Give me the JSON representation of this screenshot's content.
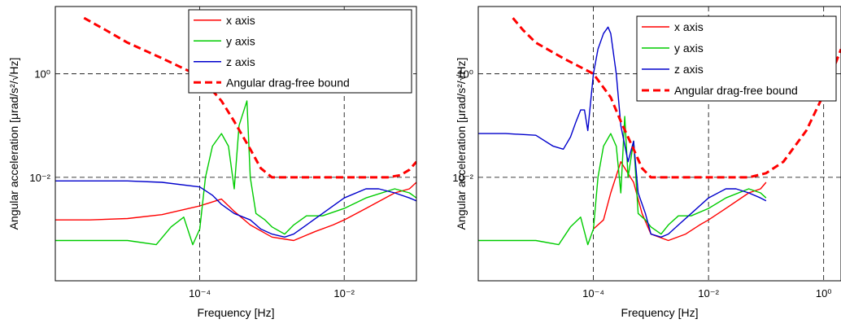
{
  "chart_data": [
    {
      "type": "line",
      "xlabel": "Frequency [Hz]",
      "ylabel": "Angular acceleration [μrad/s²/√Hz]",
      "x_scale": "log",
      "y_scale": "log",
      "xlim": [
        1e-06,
        0.1
      ],
      "ylim": [
        0.0001,
        20
      ],
      "x_ticks": [
        {
          "value": 0.0001,
          "label": "10⁻⁴"
        },
        {
          "value": 0.01,
          "label": "10⁻²"
        }
      ],
      "y_ticks": [
        {
          "value": 0.01,
          "label": "10⁻²"
        },
        {
          "value": 1,
          "label": "10⁰"
        }
      ],
      "grid": "dashed at major decades",
      "legend_position": "top-right",
      "series": [
        {
          "name": "x axis",
          "color": "#ff0000",
          "style": "solid",
          "x": [
            1e-06,
            3e-06,
            1e-05,
            3e-05,
            0.0001,
            0.0002,
            0.0003,
            0.0005,
            0.001,
            0.002,
            0.004,
            0.007,
            0.01,
            0.02,
            0.05,
            0.08,
            0.1
          ],
          "y": [
            0.0015,
            0.0015,
            0.0016,
            0.0019,
            0.0028,
            0.0038,
            0.0022,
            0.0012,
            0.0007,
            0.0006,
            0.0009,
            0.0012,
            0.0015,
            0.0025,
            0.005,
            0.006,
            0.008
          ]
        },
        {
          "name": "y axis",
          "color": "#00cc00",
          "style": "solid",
          "x": [
            1e-06,
            3e-06,
            1e-05,
            2.5e-05,
            4e-05,
            6e-05,
            8e-05,
            0.0001,
            0.00012,
            0.00015,
            0.0002,
            0.00025,
            0.0003,
            0.00035,
            0.00045,
            0.0005,
            0.0006,
            0.0008,
            0.001,
            0.0015,
            0.002,
            0.003,
            0.005,
            0.01,
            0.02,
            0.05,
            0.08,
            0.1
          ],
          "y": [
            0.0006,
            0.0006,
            0.0006,
            0.0005,
            0.0011,
            0.0017,
            0.0005,
            0.001,
            0.01,
            0.04,
            0.07,
            0.04,
            0.006,
            0.1,
            0.3,
            0.01,
            0.002,
            0.0015,
            0.0011,
            0.0008,
            0.0012,
            0.0018,
            0.0018,
            0.0025,
            0.004,
            0.006,
            0.005,
            0.004
          ]
        },
        {
          "name": "z axis",
          "color": "#0000cc",
          "style": "solid",
          "x": [
            1e-06,
            3e-06,
            1e-05,
            3e-05,
            0.0001,
            0.00015,
            0.0002,
            0.0003,
            0.0005,
            0.0007,
            0.001,
            0.0015,
            0.002,
            0.003,
            0.005,
            0.01,
            0.02,
            0.03,
            0.05,
            0.08,
            0.1
          ],
          "y": [
            0.0085,
            0.0085,
            0.0085,
            0.008,
            0.0065,
            0.0045,
            0.003,
            0.002,
            0.0015,
            0.001,
            0.0008,
            0.0007,
            0.0008,
            0.0012,
            0.002,
            0.004,
            0.006,
            0.006,
            0.005,
            0.004,
            0.0035
          ]
        },
        {
          "name": "Angular drag-free bound",
          "color": "#ff0000",
          "style": "dashed",
          "x": [
            2.5e-06,
            5e-06,
            1e-05,
            3e-05,
            0.0001,
            0.0002,
            0.0003,
            0.0005,
            0.0007,
            0.001,
            0.002,
            0.005,
            0.01,
            0.02,
            0.04,
            0.06,
            0.08,
            0.1
          ],
          "y": [
            12,
            7,
            4,
            2,
            0.9,
            0.3,
            0.12,
            0.035,
            0.015,
            0.01,
            0.01,
            0.01,
            0.01,
            0.01,
            0.01,
            0.011,
            0.014,
            0.02
          ]
        }
      ]
    },
    {
      "type": "line",
      "xlabel": "Frequency [Hz]",
      "ylabel": "Angular acceleration [μrad/s²/√Hz]",
      "x_scale": "log",
      "y_scale": "log",
      "xlim": [
        1e-06,
        2
      ],
      "ylim": [
        0.0001,
        20
      ],
      "x_ticks": [
        {
          "value": 0.0001,
          "label": "10⁻⁴"
        },
        {
          "value": 0.01,
          "label": "10⁻²"
        },
        {
          "value": 1,
          "label": "10⁰"
        }
      ],
      "y_ticks": [
        {
          "value": 0.01,
          "label": "10⁻²"
        },
        {
          "value": 1,
          "label": "10⁰"
        }
      ],
      "grid": "dashed at major decades",
      "legend_position": "top-right",
      "series": [
        {
          "name": "x axis",
          "color": "#ff0000",
          "style": "solid",
          "x": [
            0.0001,
            0.00015,
            0.0002,
            0.0003,
            0.0005,
            0.0007,
            0.001,
            0.002,
            0.004,
            0.007,
            0.01,
            0.02,
            0.05,
            0.08,
            0.1
          ],
          "y": [
            0.001,
            0.0015,
            0.005,
            0.02,
            0.008,
            0.002,
            0.0008,
            0.0006,
            0.0008,
            0.0012,
            0.0015,
            0.0025,
            0.005,
            0.006,
            0.008
          ]
        },
        {
          "name": "y axis",
          "color": "#00cc00",
          "style": "solid",
          "x": [
            1e-06,
            3e-06,
            1e-05,
            2.5e-05,
            4e-05,
            6e-05,
            8e-05,
            0.0001,
            0.00012,
            0.00015,
            0.0002,
            0.00025,
            0.0003,
            0.00035,
            0.0004,
            0.0005,
            0.0006,
            0.0008,
            0.001,
            0.0015,
            0.002,
            0.003,
            0.005,
            0.01,
            0.02,
            0.05,
            0.08,
            0.1
          ],
          "y": [
            0.0006,
            0.0006,
            0.0006,
            0.0005,
            0.0011,
            0.0017,
            0.0005,
            0.001,
            0.01,
            0.04,
            0.07,
            0.04,
            0.005,
            0.15,
            0.01,
            0.05,
            0.002,
            0.0015,
            0.0011,
            0.0008,
            0.0012,
            0.0018,
            0.0018,
            0.0025,
            0.004,
            0.006,
            0.005,
            0.004
          ]
        },
        {
          "name": "z axis",
          "color": "#0000cc",
          "style": "solid",
          "x": [
            1e-06,
            3e-06,
            1e-05,
            2e-05,
            3e-05,
            4e-05,
            5e-05,
            6e-05,
            7e-05,
            8e-05,
            9e-05,
            0.0001,
            0.00012,
            0.00015,
            0.00018,
            0.0002,
            0.00025,
            0.0003,
            0.0004,
            0.0005,
            0.0006,
            0.0008,
            0.001,
            0.0015,
            0.002,
            0.003,
            0.005,
            0.01,
            0.02,
            0.03,
            0.05,
            0.08,
            0.1
          ],
          "y": [
            0.07,
            0.07,
            0.065,
            0.04,
            0.035,
            0.06,
            0.12,
            0.2,
            0.2,
            0.08,
            0.3,
            1.0,
            3.0,
            6.0,
            8.0,
            6.0,
            1.0,
            0.1,
            0.02,
            0.05,
            0.005,
            0.002,
            0.0008,
            0.0007,
            0.0008,
            0.0012,
            0.002,
            0.004,
            0.006,
            0.006,
            0.005,
            0.004,
            0.0035
          ]
        },
        {
          "name": "Angular drag-free bound",
          "color": "#ff0000",
          "style": "dashed",
          "x": [
            4e-06,
            6e-06,
            1e-05,
            3e-05,
            0.0001,
            0.0002,
            0.0003,
            0.0005,
            0.0007,
            0.001,
            0.002,
            0.005,
            0.01,
            0.02,
            0.05,
            0.1,
            0.2,
            0.5,
            1,
            2
          ],
          "y": [
            12,
            7,
            4,
            2,
            1.0,
            0.35,
            0.12,
            0.035,
            0.015,
            0.01,
            0.01,
            0.01,
            0.01,
            0.01,
            0.01,
            0.012,
            0.02,
            0.08,
            0.4,
            3
          ]
        }
      ]
    }
  ]
}
